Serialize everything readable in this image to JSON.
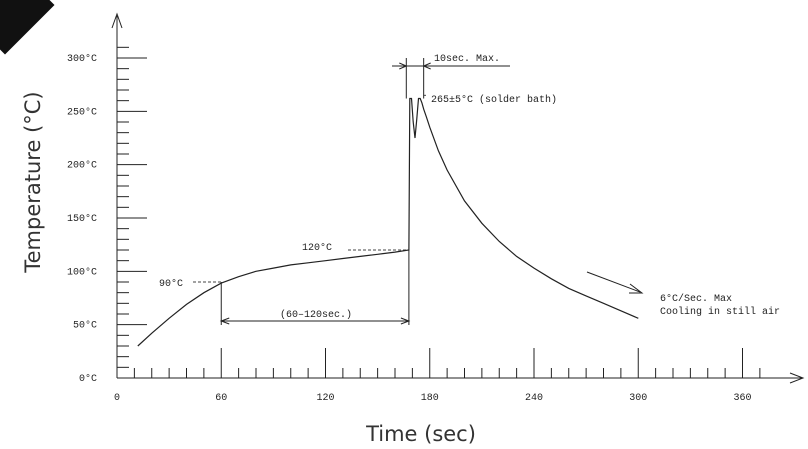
{
  "chart_data": {
    "type": "line",
    "title": "",
    "xlabel": "Time (sec)",
    "ylabel": "Temperature (°C)",
    "xlim": [
      0,
      380
    ],
    "ylim": [
      0,
      320
    ],
    "x_ticks": [
      0,
      60,
      120,
      180,
      240,
      300,
      360
    ],
    "x_tick_labels": [
      "0",
      "60",
      "120",
      "180",
      "240",
      "300",
      "360"
    ],
    "y_ticks": [
      0,
      50,
      100,
      150,
      200,
      250,
      300
    ],
    "y_tick_labels": [
      "0°C",
      "50°C",
      "100°C",
      "150°C",
      "200°C",
      "250°C",
      "300°C"
    ],
    "grid": false,
    "series": [
      {
        "name": "",
        "x": [
          12,
          20,
          30,
          40,
          50,
          60,
          70,
          80,
          90,
          100,
          110,
          120,
          130,
          140,
          150,
          160,
          168,
          168.5,
          169.5,
          170.5,
          171.5,
          172.5,
          173.5,
          174.5,
          175.5,
          176.5,
          178,
          180,
          185,
          190,
          200,
          210,
          220,
          230,
          240,
          250,
          260,
          270,
          280,
          290,
          300
        ],
        "y": [
          30,
          42,
          56,
          69,
          80,
          89,
          95,
          100,
          103,
          106,
          108,
          110,
          112,
          114,
          116,
          118,
          120,
          262,
          262,
          240,
          225,
          242,
          262,
          262,
          258,
          252,
          245,
          235,
          213,
          195,
          166,
          145,
          128,
          114,
          103,
          93,
          84,
          77,
          70,
          63,
          56
        ]
      }
    ],
    "annotations": [
      {
        "text": "90°C",
        "x": 60,
        "y": 90
      },
      {
        "text": "120°C",
        "x": 168,
        "y": 120
      },
      {
        "text": "265±5°C (solder bath)",
        "x": 176,
        "y": 265
      },
      {
        "text": "10sec. Max.",
        "x": 172,
        "y": 290
      },
      {
        "text": "(60–120sec.)",
        "x": 114,
        "y": 48
      },
      {
        "text": "6°C/Sec. Max",
        "x": 300,
        "y": 70
      },
      {
        "text": "Cooling in still air",
        "x": 300,
        "y": 59
      }
    ]
  }
}
